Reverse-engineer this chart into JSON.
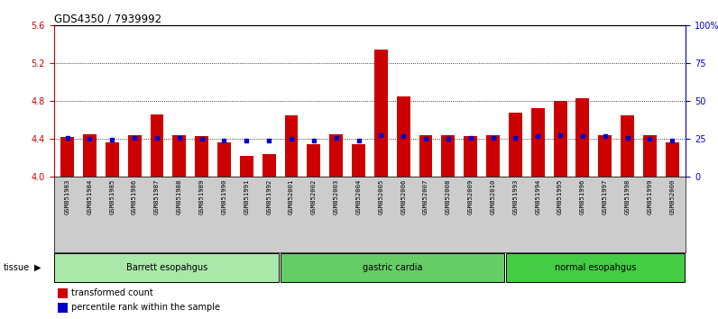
{
  "title": "GDS4350 / 7939992",
  "samples": [
    "GSM851983",
    "GSM851984",
    "GSM851985",
    "GSM851986",
    "GSM851987",
    "GSM851988",
    "GSM851989",
    "GSM851990",
    "GSM851991",
    "GSM851992",
    "GSM852001",
    "GSM852002",
    "GSM852003",
    "GSM852004",
    "GSM852005",
    "GSM852006",
    "GSM852007",
    "GSM852008",
    "GSM852009",
    "GSM852010",
    "GSM851993",
    "GSM851994",
    "GSM851995",
    "GSM851996",
    "GSM851997",
    "GSM851998",
    "GSM851999",
    "GSM852000"
  ],
  "bar_values": [
    4.42,
    4.45,
    4.37,
    4.44,
    4.66,
    4.44,
    4.43,
    4.37,
    4.22,
    4.24,
    4.65,
    4.35,
    4.45,
    4.35,
    5.35,
    4.85,
    4.44,
    4.44,
    4.43,
    4.44,
    4.68,
    4.73,
    4.8,
    4.83,
    4.44,
    4.65,
    4.44,
    4.37
  ],
  "percentile_values_left_axis": [
    4.41,
    4.4,
    4.395,
    4.415,
    4.41,
    4.415,
    4.4,
    4.383,
    4.383,
    4.383,
    4.4,
    4.383,
    4.415,
    4.383,
    4.44,
    4.43,
    4.4,
    4.4,
    4.41,
    4.415,
    4.415,
    4.43,
    4.44,
    4.43,
    4.43,
    4.415,
    4.4,
    4.383
  ],
  "groups": [
    {
      "label": "Barrett esopahgus",
      "start": 0,
      "end": 10,
      "color": "#aae8aa"
    },
    {
      "label": "gastric cardia",
      "start": 10,
      "end": 20,
      "color": "#66cc66"
    },
    {
      "label": "normal esopahgus",
      "start": 20,
      "end": 28,
      "color": "#44cc44"
    }
  ],
  "bar_color": "#cc0000",
  "percentile_color": "#0000cc",
  "ylim_left": [
    4.0,
    5.6
  ],
  "ylim_right": [
    0,
    100
  ],
  "yticks_left": [
    4.0,
    4.4,
    4.8,
    5.2,
    5.6
  ],
  "yticks_right": [
    0,
    25,
    50,
    75,
    100
  ],
  "grid_values": [
    4.4,
    4.8,
    5.2
  ],
  "bg_color": "#ffffff",
  "axis_color_left": "#cc0000",
  "axis_color_right": "#0000cc",
  "xtick_bg_color": "#cccccc",
  "tissue_label": "tissue",
  "arrow": "▶",
  "legend_items": [
    {
      "label": "transformed count",
      "color": "#cc0000"
    },
    {
      "label": "percentile rank within the sample",
      "color": "#0000cc"
    }
  ]
}
